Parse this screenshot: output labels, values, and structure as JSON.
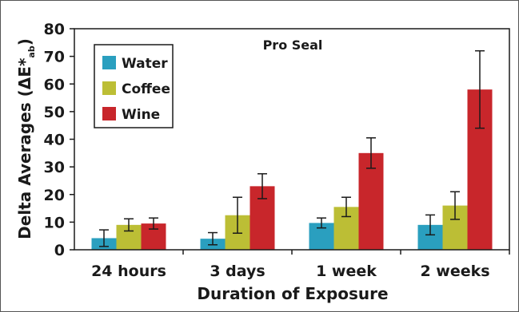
{
  "chart_data": {
    "type": "bar",
    "title": "Pro Seal",
    "xlabel": "Duration of Exposure",
    "ylabel": "Delta Averages (ΔE*",
    "ylabel_subscript": "ab",
    "ylabel_close": ")",
    "ylim": [
      0,
      80
    ],
    "yticks": [
      "0",
      "10",
      "20",
      "30",
      "40",
      "50",
      "60",
      "70",
      "80"
    ],
    "categories": [
      "24 hours",
      "3 days",
      "1 week",
      "2 weeks"
    ],
    "series": [
      {
        "name": "Water",
        "color": "#2a9fbf",
        "values": [
          4.2,
          4.0,
          9.7,
          9.0
        ],
        "errors": [
          3.0,
          2.2,
          1.8,
          3.6
        ]
      },
      {
        "name": "Coffee",
        "color": "#bcbe35",
        "values": [
          9.0,
          12.5,
          15.5,
          16.0
        ],
        "errors": [
          2.2,
          6.5,
          3.5,
          5.0
        ]
      },
      {
        "name": "Wine",
        "color": "#c8262b",
        "values": [
          9.5,
          23.0,
          35.0,
          58.0
        ],
        "errors": [
          2.0,
          4.5,
          5.5,
          14.0
        ]
      }
    ],
    "grid": false,
    "legend_position": "top-left"
  }
}
